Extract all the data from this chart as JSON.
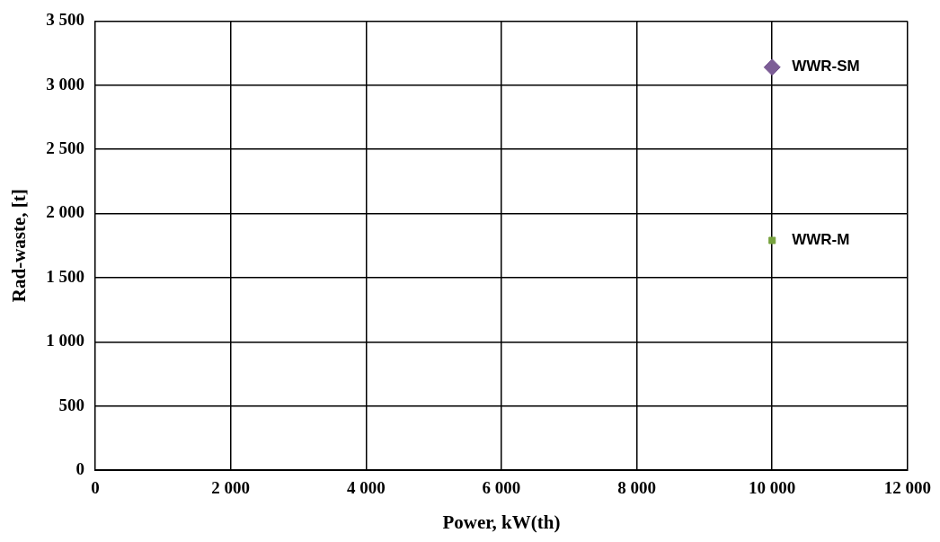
{
  "chart_data": {
    "type": "scatter",
    "xlabel": "Power, kW(th)",
    "ylabel": "Rad-waste, [t]",
    "xlim": [
      0,
      12000
    ],
    "xticks": [
      {
        "value": 0,
        "label": "0"
      },
      {
        "value": 2000,
        "label": "2 000"
      },
      {
        "value": 4000,
        "label": "4 000"
      },
      {
        "value": 6000,
        "label": "6 000"
      },
      {
        "value": 8000,
        "label": "8 000"
      },
      {
        "value": 10000,
        "label": "10 000"
      },
      {
        "value": 12000,
        "label": "12 000"
      }
    ],
    "ylim": [
      0,
      3500
    ],
    "yticks": [
      {
        "value": 0,
        "label": "0"
      },
      {
        "value": 500,
        "label": "500"
      },
      {
        "value": 1000,
        "label": "1 000"
      },
      {
        "value": 1500,
        "label": "1 500"
      },
      {
        "value": 2000,
        "label": "2 000"
      },
      {
        "value": 2500,
        "label": "2 500"
      },
      {
        "value": 3000,
        "label": "3 000"
      },
      {
        "value": 3500,
        "label": "3 500"
      }
    ],
    "grid": true,
    "legend": false,
    "series": [
      {
        "name": "WWR-SM",
        "color": "#7c5d96",
        "marker": "diamond",
        "x": [
          10000
        ],
        "values": [
          3140
        ]
      },
      {
        "name": "WWR-M",
        "color": "#77a33e",
        "marker": "square",
        "x": [
          10000
        ],
        "values": [
          1790
        ]
      }
    ]
  }
}
